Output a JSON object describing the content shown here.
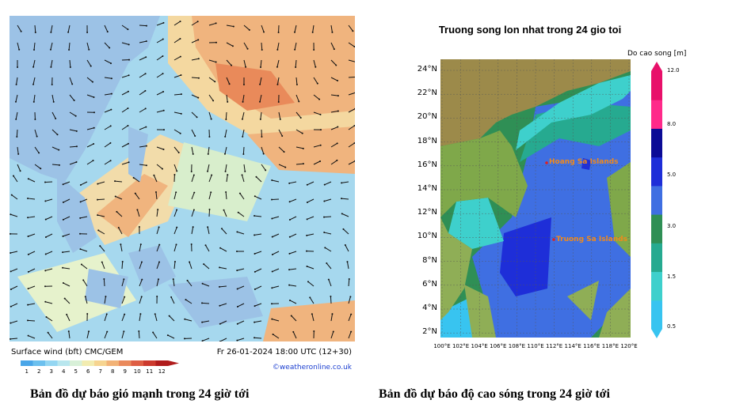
{
  "wind_panel": {
    "label_left": "Surface wind (bft)   CMC/GEM",
    "label_right": "Fr 26-01-2024 18:00 UTC (12+30)",
    "credit": "©weatheronline.co.uk",
    "scale_values": [
      "1",
      "2",
      "3",
      "4",
      "5",
      "6",
      "7",
      "8",
      "9",
      "10",
      "11",
      "12"
    ],
    "scale_colors": [
      "#4aa6e8",
      "#6cc0ee",
      "#94d6f2",
      "#b8e6ee",
      "#d8f0d8",
      "#f2ecb0",
      "#f6d490",
      "#f2b276",
      "#ea8a5c",
      "#de5e44",
      "#cc3a2e",
      "#b01c1c"
    ],
    "caption": "Bản đồ dự báo gió mạnh trong 24 giờ tới"
  },
  "wave_panel": {
    "title": "Truong song lon nhat trong 24 gio toi",
    "colorbar_label": "Do cao song [m]",
    "lat_ticks": [
      "24°N",
      "22°N",
      "20°N",
      "18°N",
      "16°N",
      "14°N",
      "12°N",
      "10°N",
      "8°N",
      "6°N",
      "4°N",
      "2°N"
    ],
    "lon_ticks": [
      "100°E",
      "102°E",
      "104°E",
      "106°E",
      "108°E",
      "110°E",
      "112°E",
      "114°E",
      "116°E",
      "118°E",
      "120°E"
    ],
    "colorbar_ticks": [
      "12.0",
      "8.0",
      "5.0",
      "3.0",
      "1.5",
      "0.5"
    ],
    "colorbar_colors": [
      "#38c4f0",
      "#3ed0cc",
      "#26aa90",
      "#2f8f55",
      "#3f6fe2",
      "#1e2ed8",
      "#0b0b96",
      "#ff2a8a",
      "#e8106a"
    ],
    "place_labels": [
      "Hoang Sa Islands",
      "Truong Sa Islands"
    ],
    "caption": "Bản đồ dự báo độ cao sóng trong 24 giờ tới"
  }
}
